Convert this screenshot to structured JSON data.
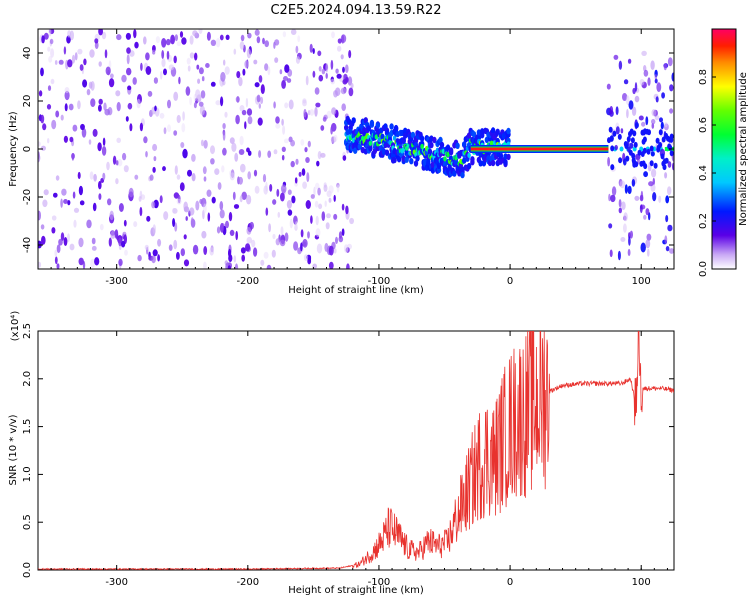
{
  "title": "C2E5.2024.094.13.59.R22",
  "chart_data": [
    {
      "type": "heatmap",
      "xlabel": "Height of straight line (km)",
      "ylabel": "Frequency (Hz)",
      "xlim": [
        -360,
        125
      ],
      "ylim": [
        -50,
        50
      ],
      "x_ticks": [
        -300,
        -200,
        -100,
        0,
        100
      ],
      "y_ticks": [
        -40,
        -20,
        0,
        20,
        40
      ],
      "colorbar": {
        "label": "Normalized spectral amplitude",
        "range": [
          0,
          1
        ],
        "ticks": [
          0.0,
          0.2,
          0.4,
          0.6,
          0.8
        ]
      },
      "features": [
        {
          "kind": "noise",
          "x_range": [
            -360,
            -120
          ],
          "freq_range": [
            -50,
            50
          ],
          "amplitude": 0.1
        },
        {
          "kind": "signal",
          "points": [
            [
              -125,
              6
            ],
            [
              -110,
              5
            ],
            [
              -95,
              3
            ],
            [
              -80,
              1
            ],
            [
              -60,
              -2
            ],
            [
              -45,
              -4
            ],
            [
              -35,
              -4
            ],
            [
              -30,
              1
            ],
            [
              -20,
              1
            ],
            [
              0,
              0.5
            ]
          ],
          "amplitude": 0.45
        },
        {
          "kind": "carrier",
          "x_range": [
            -30,
            75
          ],
          "freq": 0,
          "amplitude": 0.95
        },
        {
          "kind": "noise",
          "x_range": [
            75,
            125
          ],
          "freq_range": [
            -45,
            40
          ],
          "amplitude": 0.15
        }
      ]
    },
    {
      "type": "line",
      "xlabel": "Height of straight line (km)",
      "ylabel": "SNR (10 * v/v)",
      "y_multiplier": "(x10⁴)",
      "xlim": [
        -360,
        125
      ],
      "ylim": [
        0,
        2.5
      ],
      "x_ticks": [
        -300,
        -200,
        -100,
        0,
        100
      ],
      "y_ticks": [
        0.0,
        0.5,
        1.0,
        1.5,
        2.0,
        2.5
      ],
      "series": [
        {
          "color": "#e8322e",
          "x": [
            -360,
            -200,
            -130,
            -115,
            -105,
            -98,
            -92,
            -85,
            -78,
            -70,
            -62,
            -55,
            -48,
            -42,
            -36,
            -30,
            -24,
            -18,
            -12,
            -6,
            0,
            6,
            12,
            18,
            24,
            30,
            40,
            55,
            70,
            85,
            92,
            96,
            98,
            100,
            105,
            115,
            125
          ],
          "y": [
            0.01,
            0.01,
            0.02,
            0.06,
            0.18,
            0.3,
            0.45,
            0.35,
            0.22,
            0.18,
            0.3,
            0.25,
            0.28,
            0.5,
            0.7,
            0.9,
            1.1,
            1.2,
            1.15,
            1.35,
            1.5,
            1.6,
            1.65,
            1.75,
            1.8,
            1.87,
            1.93,
            1.95,
            1.95,
            1.95,
            2.0,
            1.7,
            2.5,
            1.9,
            1.9,
            1.9,
            1.88
          ]
        }
      ]
    }
  ]
}
